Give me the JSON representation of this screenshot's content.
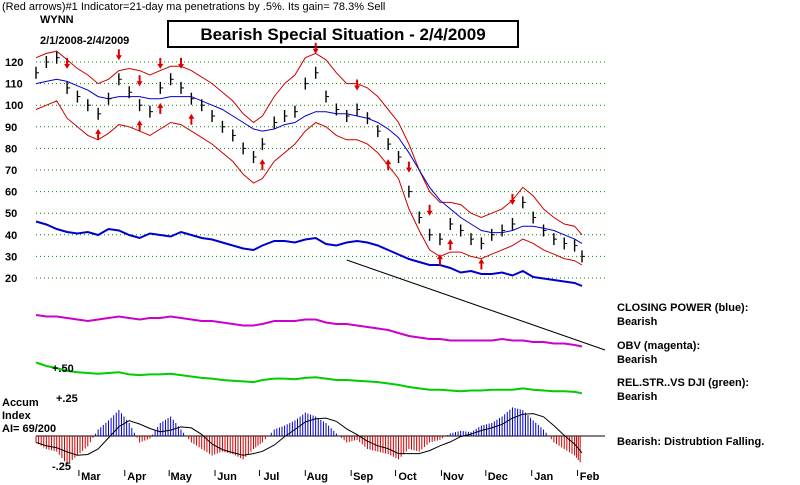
{
  "header": {
    "line": "(Red arrows)#1 Indicator=21-day ma penetrations by .5%.  Its gain= 78.3% Sell",
    "ticker": "WYNN",
    "range": "2/1/2008-2/4/2009",
    "title": "Bearish Special Situation - 2/4/2009"
  },
  "right_labels": {
    "cp_title": "CLOSING POWER (blue):",
    "cp_value": "Bearish",
    "obv_title": "OBV (magenta):",
    "obv_value": "Bearish",
    "rs_title": "REL.STR..VS DJI (green):",
    "rs_value": "Bearish",
    "accum_note": "Bearish: Distrubtion Falling."
  },
  "accum_panel": {
    "label_line1": "Accum",
    "label_line2": "Index",
    "label_line3": "AI= 69/200",
    "top_tick": "+.25",
    "bottom_tick": "-.25",
    "rs_tick": "+.50"
  },
  "colors": {
    "price": "#000000",
    "bands": "#cc0000",
    "ma50": "#0000cc",
    "closing_power": "#0000cc",
    "obv": "#cc00cc",
    "rel_strength": "#00cc00",
    "grid": "#008800",
    "arrows": "#dd0000",
    "accum_pos": "#0000cc",
    "accum_neg": "#cc0000"
  },
  "chart_data": {
    "type": "line",
    "title": "Bearish Special Situation - 2/4/2009",
    "ylim": [
      20,
      125
    ],
    "y_ticks": [
      120,
      110,
      100,
      90,
      80,
      70,
      60,
      50,
      40,
      30,
      20
    ],
    "months": [
      "Mar",
      "Apr",
      "May",
      "Jun",
      "Jul",
      "Aug",
      "Sep",
      "Oct",
      "Nov",
      "Dec",
      "Jan",
      "Feb"
    ],
    "price_series": {
      "name": "WYNN",
      "x": [
        "2008-02-01",
        "2008-02-08",
        "2008-02-15",
        "2008-02-22",
        "2008-02-29",
        "2008-03-07",
        "2008-03-14",
        "2008-03-21",
        "2008-03-28",
        "2008-04-04",
        "2008-04-11",
        "2008-04-18",
        "2008-04-25",
        "2008-05-02",
        "2008-05-09",
        "2008-05-16",
        "2008-05-23",
        "2008-05-30",
        "2008-06-06",
        "2008-06-13",
        "2008-06-20",
        "2008-06-27",
        "2008-07-03",
        "2008-07-11",
        "2008-07-18",
        "2008-07-25",
        "2008-08-01",
        "2008-08-08",
        "2008-08-15",
        "2008-08-22",
        "2008-08-29",
        "2008-09-05",
        "2008-09-12",
        "2008-09-19",
        "2008-09-26",
        "2008-10-03",
        "2008-10-10",
        "2008-10-17",
        "2008-10-24",
        "2008-10-31",
        "2008-11-07",
        "2008-11-14",
        "2008-11-21",
        "2008-11-28",
        "2008-12-05",
        "2008-12-12",
        "2008-12-19",
        "2008-12-26",
        "2009-01-02",
        "2009-01-09",
        "2009-01-16",
        "2009-01-23",
        "2009-01-30",
        "2009-02-04"
      ],
      "y": [
        115,
        120,
        122,
        108,
        104,
        100,
        96,
        103,
        112,
        106,
        100,
        97,
        108,
        112,
        108,
        103,
        100,
        95,
        90,
        86,
        80,
        76,
        82,
        92,
        95,
        97,
        110,
        115,
        104,
        98,
        95,
        98,
        94,
        88,
        82,
        76,
        60,
        48,
        40,
        38,
        45,
        42,
        38,
        36,
        40,
        42,
        45,
        55,
        48,
        42,
        38,
        36,
        35,
        30
      ]
    },
    "bands": {
      "name": "21-day ma bands",
      "upper": [
        122,
        124,
        125,
        121,
        117,
        114,
        110,
        112,
        116,
        117,
        116,
        114,
        116,
        118,
        118,
        116,
        113,
        110,
        106,
        102,
        96,
        92,
        95,
        104,
        110,
        114,
        122,
        124,
        121,
        115,
        110,
        110,
        108,
        104,
        98,
        92,
        82,
        70,
        60,
        55,
        55,
        54,
        50,
        48,
        50,
        52,
        56,
        62,
        58,
        52,
        48,
        45,
        44,
        40
      ],
      "lower": [
        98,
        100,
        102,
        94,
        90,
        86,
        84,
        87,
        91,
        90,
        88,
        86,
        89,
        92,
        91,
        88,
        85,
        82,
        78,
        74,
        68,
        64,
        66,
        74,
        78,
        82,
        88,
        92,
        90,
        86,
        84,
        84,
        82,
        78,
        72,
        66,
        52,
        42,
        33,
        30,
        32,
        32,
        30,
        29,
        31,
        33,
        35,
        38,
        36,
        33,
        31,
        29,
        28,
        26
      ]
    },
    "ma50": [
      110,
      111,
      112,
      111,
      109,
      107,
      104,
      103,
      104,
      104,
      104,
      103,
      103,
      104,
      104,
      104,
      102,
      100,
      98,
      95,
      92,
      89,
      88,
      89,
      91,
      92,
      95,
      97,
      97,
      96,
      96,
      95,
      94,
      92,
      89,
      85,
      78,
      70,
      62,
      56,
      52,
      48,
      45,
      42,
      41,
      41,
      42,
      44,
      44,
      43,
      42,
      40,
      38,
      36
    ],
    "sell_arrows_x": [
      "2008-02-22",
      "2008-03-28",
      "2008-04-11",
      "2008-04-25",
      "2008-05-09",
      "2008-08-08",
      "2008-09-05",
      "2008-10-10",
      "2008-10-24",
      "2008-12-19"
    ],
    "buy_arrows_x": [
      "2008-03-14",
      "2008-04-11",
      "2008-04-25",
      "2008-05-16",
      "2008-07-03",
      "2008-09-26",
      "2008-10-31",
      "2008-11-07",
      "2008-11-28"
    ],
    "closing_power": [
      49,
      47,
      44,
      42,
      41,
      42,
      40,
      44,
      43,
      40,
      38,
      41,
      40,
      39,
      42,
      40,
      38,
      37,
      35,
      33,
      31,
      30,
      33,
      36,
      36,
      35,
      37,
      38,
      34,
      33,
      35,
      36,
      35,
      33,
      30,
      27,
      24,
      22,
      20,
      20,
      18,
      15,
      16,
      14,
      14,
      15,
      13,
      16,
      12,
      11,
      10,
      9,
      8,
      6
    ],
    "obv": [
      20,
      19,
      19,
      18,
      17,
      16,
      17,
      18,
      19,
      18,
      17,
      18,
      18,
      19,
      18,
      17,
      16,
      16,
      15,
      14,
      13,
      13,
      14,
      16,
      16,
      16,
      17,
      17,
      15,
      14,
      14,
      13,
      12,
      11,
      10,
      8,
      6,
      5,
      4,
      4,
      3,
      3,
      3,
      3,
      3,
      4,
      3,
      3,
      2,
      2,
      1,
      1,
      0,
      -1
    ],
    "rel_strength": [
      0.7,
      0.65,
      0.62,
      0.58,
      0.56,
      0.55,
      0.54,
      0.55,
      0.56,
      0.53,
      0.52,
      0.53,
      0.53,
      0.54,
      0.52,
      0.5,
      0.48,
      0.47,
      0.45,
      0.44,
      0.43,
      0.42,
      0.45,
      0.47,
      0.47,
      0.46,
      0.48,
      0.49,
      0.47,
      0.45,
      0.45,
      0.44,
      0.43,
      0.42,
      0.4,
      0.38,
      0.35,
      0.33,
      0.31,
      0.31,
      0.3,
      0.29,
      0.3,
      0.3,
      0.31,
      0.31,
      0.31,
      0.33,
      0.31,
      0.3,
      0.29,
      0.29,
      0.28,
      0.26
    ],
    "accum_index": [
      -0.05,
      -0.1,
      -0.12,
      -0.22,
      -0.15,
      -0.08,
      0.05,
      0.12,
      0.2,
      0.1,
      -0.05,
      -0.02,
      0.1,
      0.15,
      0.05,
      -0.05,
      -0.1,
      -0.15,
      -0.12,
      -0.14,
      -0.18,
      -0.1,
      -0.05,
      0.05,
      0.08,
      0.12,
      0.18,
      0.15,
      0.1,
      0.02,
      -0.05,
      -0.03,
      -0.1,
      -0.12,
      -0.14,
      -0.18,
      -0.1,
      -0.12,
      -0.05,
      -0.03,
      0.02,
      0.04,
      0.03,
      0.08,
      0.1,
      0.15,
      0.22,
      0.2,
      0.12,
      0.05,
      -0.05,
      -0.1,
      -0.15,
      -0.22
    ]
  }
}
